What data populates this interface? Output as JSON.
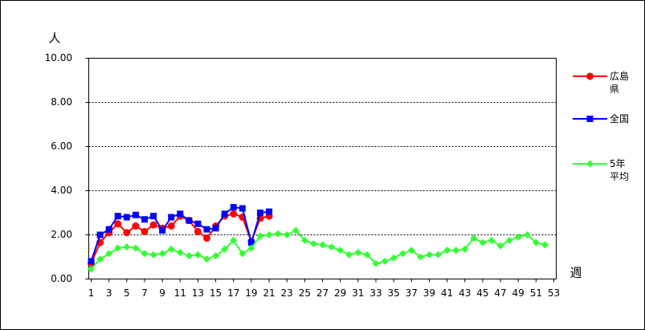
{
  "chart_data": {
    "type": "line",
    "y_label": "人",
    "x_label": "週",
    "x": [
      1,
      2,
      3,
      4,
      5,
      6,
      7,
      8,
      9,
      10,
      11,
      12,
      13,
      14,
      15,
      16,
      17,
      18,
      19,
      20,
      21,
      22,
      23,
      24,
      25,
      26,
      27,
      28,
      29,
      30,
      31,
      32,
      33,
      34,
      35,
      36,
      37,
      38,
      39,
      40,
      41,
      42,
      43,
      44,
      45,
      46,
      47,
      48,
      49,
      50,
      51,
      52,
      53
    ],
    "xlim": [
      1,
      53
    ],
    "xticks": [
      1,
      3,
      5,
      7,
      9,
      11,
      13,
      15,
      17,
      19,
      21,
      23,
      25,
      27,
      29,
      31,
      33,
      35,
      37,
      39,
      41,
      43,
      45,
      47,
      49,
      51,
      53
    ],
    "ylim": [
      0,
      10
    ],
    "yticks": [
      {
        "value": 0,
        "label": "0.00"
      },
      {
        "value": 2,
        "label": "2.00"
      },
      {
        "value": 4,
        "label": "4.00"
      },
      {
        "value": 6,
        "label": "6.00"
      },
      {
        "value": 8,
        "label": "8.00"
      },
      {
        "value": 10,
        "label": "10.00"
      }
    ],
    "grid": true,
    "series": [
      {
        "name": "広島県",
        "color": "#ff0000",
        "marker": "circle",
        "values": [
          0.7,
          1.65,
          2.1,
          2.5,
          2.1,
          2.4,
          2.15,
          2.45,
          2.3,
          2.4,
          2.85,
          2.65,
          2.15,
          1.85,
          2.4,
          2.85,
          2.95,
          2.8,
          1.7,
          2.75,
          2.85,
          null,
          null,
          null,
          null,
          null,
          null,
          null,
          null,
          null,
          null,
          null,
          null,
          null,
          null,
          null,
          null,
          null,
          null,
          null,
          null,
          null,
          null,
          null,
          null,
          null,
          null,
          null,
          null,
          null,
          null,
          null,
          null
        ]
      },
      {
        "name": "全国",
        "color": "#0000ff",
        "marker": "square",
        "values": [
          0.8,
          2.0,
          2.25,
          2.85,
          2.8,
          2.9,
          2.7,
          2.85,
          2.2,
          2.8,
          2.95,
          2.65,
          2.5,
          2.25,
          2.3,
          2.95,
          3.25,
          3.2,
          1.65,
          3.0,
          3.05,
          null,
          null,
          null,
          null,
          null,
          null,
          null,
          null,
          null,
          null,
          null,
          null,
          null,
          null,
          null,
          null,
          null,
          null,
          null,
          null,
          null,
          null,
          null,
          null,
          null,
          null,
          null,
          null,
          null,
          null,
          null,
          null
        ]
      },
      {
        "name": "5年平均",
        "color": "#33ff33",
        "marker": "diamond",
        "values": [
          0.45,
          0.9,
          1.15,
          1.4,
          1.45,
          1.4,
          1.15,
          1.1,
          1.15,
          1.35,
          1.2,
          1.05,
          1.1,
          0.9,
          1.05,
          1.35,
          1.75,
          1.15,
          1.4,
          1.95,
          2.0,
          2.05,
          2.0,
          2.2,
          1.75,
          1.6,
          1.55,
          1.45,
          1.3,
          1.1,
          1.2,
          1.1,
          0.7,
          0.8,
          0.95,
          1.15,
          1.3,
          1.0,
          1.1,
          1.1,
          1.3,
          1.3,
          1.35,
          1.85,
          1.65,
          1.75,
          1.5,
          1.75,
          1.9,
          2.0,
          1.65,
          1.55,
          null
        ]
      }
    ]
  }
}
